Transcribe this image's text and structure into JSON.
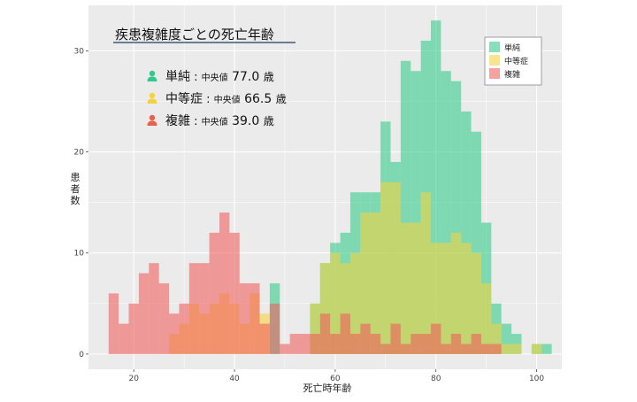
{
  "chart_data": {
    "type": "histogram",
    "title": "疾患複雑度ごとの死亡年齢",
    "xlabel": "死亡時年齢",
    "ylabel": "患者数",
    "xlim": [
      11,
      105
    ],
    "ylim": [
      -1.5,
      34.5
    ],
    "x_ticks": [
      20,
      40,
      60,
      80,
      100
    ],
    "y_ticks": [
      0,
      10,
      20,
      30
    ],
    "bin_width": 2,
    "bin_starts": [
      15,
      17,
      19,
      21,
      23,
      25,
      27,
      29,
      31,
      33,
      35,
      37,
      39,
      41,
      43,
      45,
      47,
      49,
      51,
      53,
      55,
      57,
      59,
      61,
      63,
      65,
      67,
      69,
      71,
      73,
      75,
      77,
      79,
      81,
      83,
      85,
      87,
      89,
      91,
      93,
      95,
      97,
      99,
      101
    ],
    "legend_position": "top-right",
    "series": [
      {
        "name": "単純",
        "color": "#2ecc8a",
        "values": [
          0,
          0,
          0,
          0,
          0,
          0,
          0,
          0,
          0,
          0,
          0,
          0,
          0,
          0,
          0,
          0,
          7,
          0,
          0,
          0,
          5,
          9,
          11,
          12,
          16,
          16,
          16,
          23,
          19,
          29,
          28,
          31,
          33,
          28,
          27,
          24,
          22,
          13,
          5,
          3,
          2,
          0,
          1,
          1
        ]
      },
      {
        "name": "中等症",
        "color": "#f5d23c",
        "values": [
          0,
          0,
          0,
          0,
          0,
          0,
          2,
          3,
          5,
          4,
          5,
          6,
          5,
          3,
          6,
          4,
          0,
          0,
          0,
          0,
          5,
          9,
          10,
          9,
          10,
          14,
          14,
          17,
          17,
          13,
          13,
          16,
          11,
          11,
          12,
          11,
          10,
          7,
          3,
          1,
          1,
          0,
          1,
          0
        ]
      },
      {
        "name": "複雑",
        "color": "#f25c5c",
        "values": [
          6,
          3,
          5,
          8,
          9,
          7,
          4,
          5,
          9,
          9,
          12,
          14,
          12,
          7,
          7,
          3,
          5,
          1,
          2,
          2,
          2,
          4,
          2,
          4,
          2,
          3,
          2,
          1,
          3,
          1,
          2,
          2,
          3,
          1,
          2,
          1,
          2,
          1,
          1,
          0,
          0,
          0,
          0,
          0
        ]
      }
    ],
    "annotations": [
      {
        "label": "単純",
        "sub": "中央値",
        "value": "77.0",
        "unit": "歳",
        "color": "#2ecc8a"
      },
      {
        "label": "中等症",
        "sub": "中央値",
        "value": "66.5",
        "unit": "歳",
        "color": "#f5d23c"
      },
      {
        "label": "複雑",
        "sub": "中央値",
        "value": "39.0",
        "unit": "歳",
        "color": "#e8604c"
      }
    ]
  }
}
